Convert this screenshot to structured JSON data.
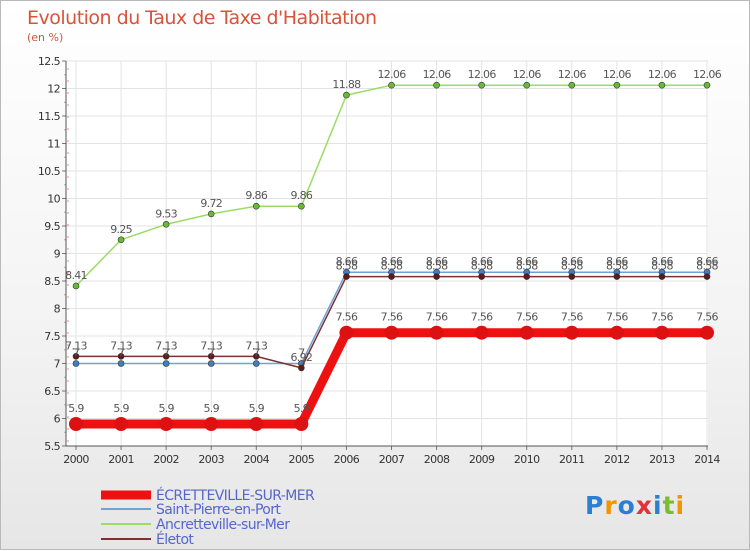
{
  "title": "Evolution du Taux de Taxe d'Habitation",
  "unit_label": "(en %)",
  "logo": {
    "letters": [
      "P",
      "r",
      "o",
      "x",
      "i",
      "t",
      "i"
    ],
    "colors": [
      "#2a7fd4",
      "#f29400",
      "#2a7fd4",
      "#e0333a",
      "#2a7fd4",
      "#7bbd2b",
      "#f29400"
    ]
  },
  "chart_data": {
    "type": "line",
    "x": [
      "2000",
      "2001",
      "2002",
      "2003",
      "2004",
      "2005",
      "2006",
      "2007",
      "2008",
      "2009",
      "2010",
      "2011",
      "2012",
      "2013",
      "2014"
    ],
    "ylim": [
      5.5,
      12.5
    ],
    "yticks": [
      "5.5",
      "6",
      "6.5",
      "7",
      "7.5",
      "8",
      "8.5",
      "9",
      "9.5",
      "10",
      "10.5",
      "11",
      "11.5",
      "12",
      "12.5"
    ],
    "grid": true,
    "legend_position": "bottom-left",
    "series": [
      {
        "name": "ÉCRETTEVILLE-SUR-MER",
        "color": "#ee1111",
        "width": 9,
        "dot": 7,
        "dotColor": "#dd1111",
        "values": [
          5.9,
          5.9,
          5.9,
          5.9,
          5.9,
          5.9,
          7.56,
          7.56,
          7.56,
          7.56,
          7.56,
          7.56,
          7.56,
          7.56,
          7.56
        ],
        "labels": [
          "5.9",
          "5.9",
          "5.9",
          "5.9",
          "5.9",
          "5.9",
          "7.56",
          "7.56",
          "7.56",
          "7.56",
          "7.56",
          "7.56",
          "7.56",
          "7.56",
          "7.56"
        ]
      },
      {
        "name": "Saint-Pierre-en-Port",
        "color": "#6fa3d6",
        "width": 1.5,
        "dot": 3,
        "dotColor": "#3b80c8",
        "values": [
          7,
          7,
          7,
          7,
          7,
          7,
          8.66,
          8.66,
          8.66,
          8.66,
          8.66,
          8.66,
          8.66,
          8.66,
          8.66
        ],
        "labels": [
          "7",
          "7",
          "7",
          "7",
          "7",
          "7",
          "8.66",
          "8.66",
          "8.66",
          "8.66",
          "8.66",
          "8.66",
          "8.66",
          "8.66",
          "8.66"
        ]
      },
      {
        "name": "Ancretteville-sur-Mer",
        "color": "#99dd66",
        "width": 1.5,
        "dot": 3,
        "dotColor": "#66bb33",
        "values": [
          8.41,
          9.25,
          9.53,
          9.72,
          9.86,
          9.86,
          11.88,
          12.06,
          12.06,
          12.06,
          12.06,
          12.06,
          12.06,
          12.06,
          12.06
        ],
        "labels": [
          "8.41",
          "9.25",
          "9.53",
          "9.72",
          "9.86",
          "9.86",
          "11.88",
          "12.06",
          "12.06",
          "12.06",
          "12.06",
          "12.06",
          "12.06",
          "12.06",
          "12.06"
        ]
      },
      {
        "name": "Életot",
        "color": "#7a3232",
        "width": 1.5,
        "dot": 3,
        "dotColor": "#5c1a1a",
        "values": [
          7.13,
          7.13,
          7.13,
          7.13,
          7.13,
          6.92,
          8.58,
          8.58,
          8.58,
          8.58,
          8.58,
          8.58,
          8.58,
          8.58,
          8.58
        ],
        "labels": [
          "7.13",
          "7.13",
          "7.13",
          "7.13",
          "7.13",
          "6.92",
          "8.58",
          "8.58",
          "8.58",
          "8.58",
          "8.58",
          "8.58",
          "8.58",
          "8.58",
          "8.58"
        ]
      }
    ]
  }
}
